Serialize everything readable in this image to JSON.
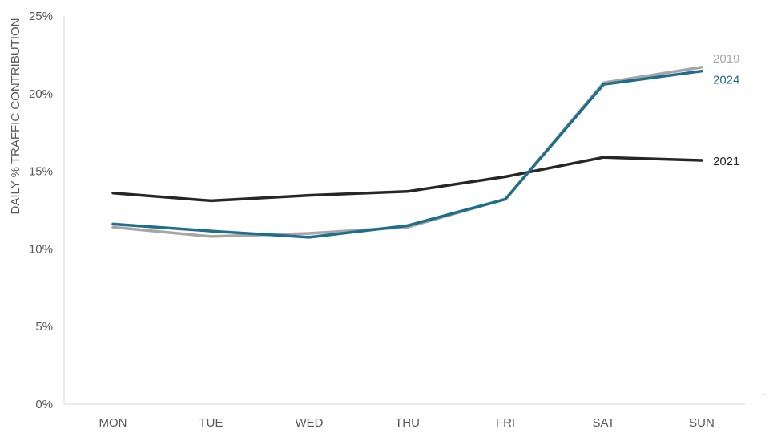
{
  "chart_data": {
    "type": "line",
    "ylabel": "DAILY % TRAFFIC CONTRIBUTION",
    "xlabel": "",
    "categories": [
      "MON",
      "TUE",
      "WED",
      "THU",
      "FRI",
      "SAT",
      "SUN"
    ],
    "ylim": [
      0,
      25
    ],
    "yticks": [
      0,
      5,
      10,
      15,
      20,
      25
    ],
    "ytick_labels": [
      "0%",
      "5%",
      "10%",
      "15%",
      "20%",
      "25%"
    ],
    "grid": false,
    "legend": "inline labels at end of lines",
    "series": [
      {
        "name": "2019",
        "color": "#a6a6a6",
        "values": [
          11.4,
          10.8,
          11.0,
          11.4,
          13.2,
          20.7,
          21.7
        ]
      },
      {
        "name": "2021",
        "color": "#262626",
        "values": [
          13.6,
          13.1,
          13.45,
          13.7,
          14.65,
          15.9,
          15.7
        ]
      },
      {
        "name": "2024",
        "color": "#1f6f8b",
        "values": [
          11.6,
          11.15,
          10.75,
          11.5,
          13.2,
          20.6,
          21.45
        ]
      }
    ]
  }
}
